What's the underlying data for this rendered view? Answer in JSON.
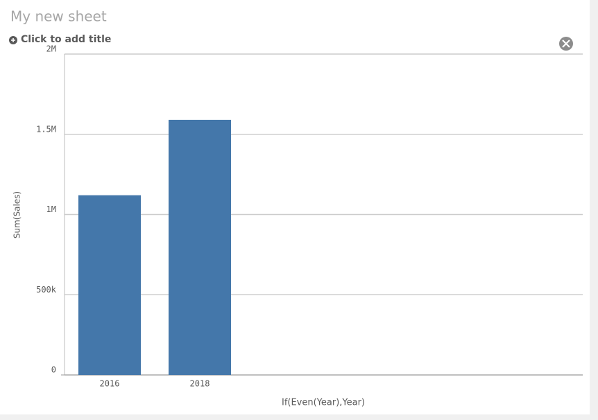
{
  "sheet_title": "My new sheet",
  "add_title_prompt": "Click to add title",
  "chart_data": {
    "type": "bar",
    "categories": [
      "2016",
      "2018"
    ],
    "values": [
      1120000,
      1590000
    ],
    "color": "#4477aa",
    "x_label": "If(Even(Year),Year)",
    "y_label": "Sum(Sales)",
    "ylim": [
      0,
      2000000
    ],
    "yticks": [
      0,
      {
        "value": 500000,
        "label": "500k"
      },
      {
        "value": 1000000,
        "label": "1M"
      },
      {
        "value": 1500000,
        "label": "1.5M"
      },
      {
        "value": 2000000,
        "label": "2M"
      }
    ],
    "grid": true
  }
}
